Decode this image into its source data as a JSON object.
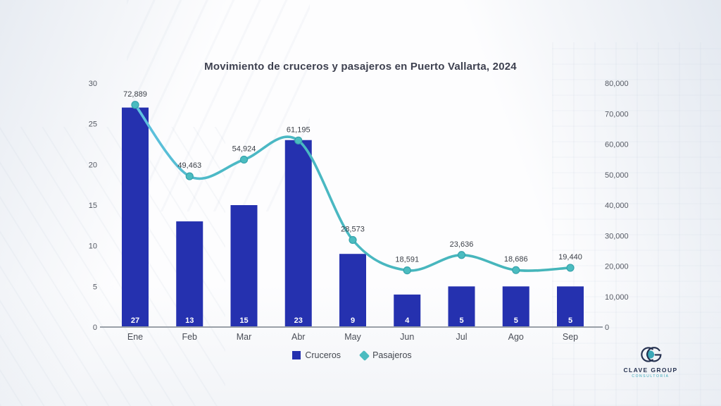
{
  "chart_data": {
    "type": "combo",
    "title": "Movimiento de cruceros y pasajeros en Puerto Vallarta, 2024",
    "categories": [
      "Ene",
      "Feb",
      "Mar",
      "Abr",
      "May",
      "Jun",
      "Jul",
      "Ago",
      "Sep"
    ],
    "series": [
      {
        "name": "Cruceros",
        "type": "bar",
        "axis": "left",
        "color": "#2531af",
        "values": [
          27,
          13,
          15,
          23,
          9,
          4,
          5,
          5,
          5
        ]
      },
      {
        "name": "Pasajeros",
        "type": "line",
        "axis": "right",
        "color": "#45b5b9",
        "marker_color": "#4bbcc0",
        "values": [
          72889,
          49463,
          54924,
          61195,
          28573,
          18591,
          23636,
          18686,
          19440
        ],
        "labels": [
          "72,889",
          "49,463",
          "54,924",
          "61,195",
          "28,573",
          "18,591",
          "23,636",
          "18,686",
          "19,440"
        ]
      }
    ],
    "left_axis": {
      "min": 0,
      "max": 30,
      "step": 5,
      "ticks": [
        "0",
        "5",
        "10",
        "15",
        "20",
        "25",
        "30"
      ]
    },
    "right_axis": {
      "min": 0,
      "max": 80000,
      "step": 10000,
      "ticks": [
        "0",
        "10,000",
        "20,000",
        "30,000",
        "40,000",
        "50,000",
        "60,000",
        "70,000",
        "80,000"
      ]
    },
    "grid": false,
    "legend_position": "bottom",
    "bar_value_label_color": "#ffffff",
    "point_label_color": "#3c4048",
    "axis_line_color": "#9aa0a8",
    "tick_label_color": "#55596200"
  },
  "legend": {
    "cruceros_label": "Cruceros",
    "pasajeros_label": "Pasajeros"
  },
  "logo": {
    "monogram": "CG",
    "name": "CLAVE GROUP",
    "tagline": "CONSULTORÍA",
    "navy": "#24304f",
    "teal": "#3aa8b8"
  }
}
